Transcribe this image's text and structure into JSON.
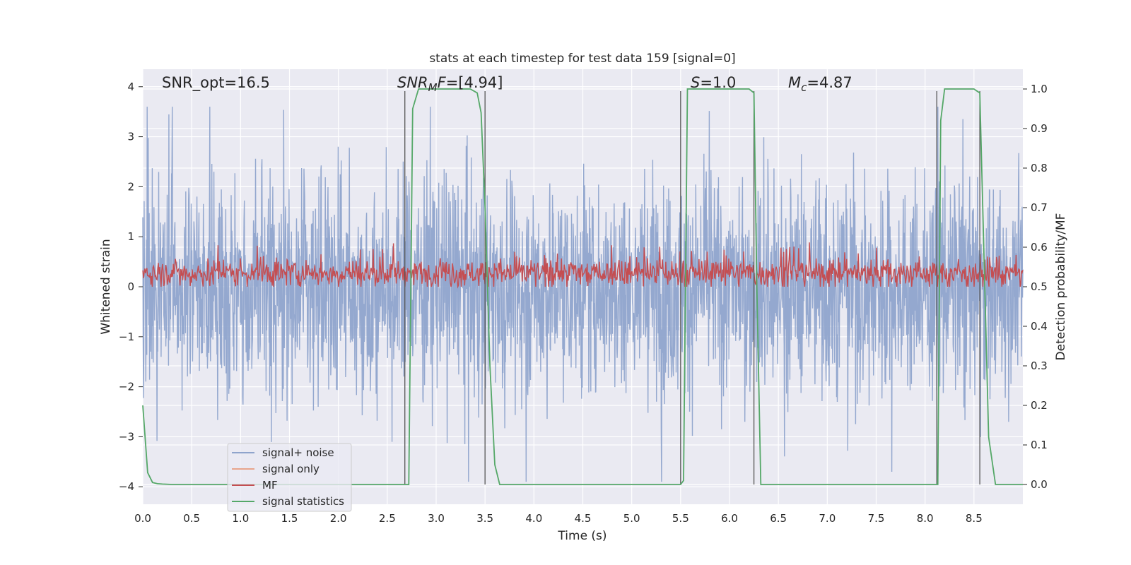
{
  "chart_data": {
    "type": "line",
    "title": "stats at each timestep for test data 159 [signal=0]",
    "xlabel": "Time (s)",
    "ylabel": "Whitened strain",
    "ylabel_right": "Detection probability/MF",
    "xlim": [
      0.0,
      9.0
    ],
    "ylim": [
      -4.35,
      4.35
    ],
    "ylim_right": [
      -0.05,
      1.05
    ],
    "x_ticks": [
      "0.0",
      "0.5",
      "1.0",
      "1.5",
      "2.0",
      "2.5",
      "3.0",
      "3.5",
      "4.0",
      "4.5",
      "5.0",
      "5.5",
      "6.0",
      "6.5",
      "7.0",
      "7.5",
      "8.0",
      "8.5"
    ],
    "y_ticks": [
      "4",
      "3",
      "2",
      "1",
      "0",
      "−1",
      "−2",
      "−3",
      "−4"
    ],
    "y_ticks_right": [
      "1.0",
      "0.9",
      "0.8",
      "0.7",
      "0.6",
      "0.5",
      "0.4",
      "0.3",
      "0.2",
      "0.1",
      "0.0"
    ],
    "grid": true,
    "legend_placement": "lower-left",
    "annotations": {
      "snr_opt": "SNR_opt=16.5",
      "snr_mf": "=[4.94]",
      "snr_mf_sym": "SNR",
      "snr_mf_sub": "M",
      "snr_mf_tail": "F",
      "s_sym": "S",
      "s_val": "=1.0",
      "mc_sym": "M",
      "mc_sub": "c",
      "mc_val": "=4.87"
    },
    "series": [
      {
        "name": "signal+ noise",
        "color": "#8fa4cc",
        "description_values": "noise, whitened strain fluctuating roughly between -3.8 and 3.6"
      },
      {
        "name": "signal only",
        "color": "#e8a48c",
        "values": []
      },
      {
        "name": "MF",
        "color": "#c44e52",
        "axis": "right",
        "range": [
          0.5,
          0.62
        ]
      },
      {
        "name": "signal statistics",
        "color": "#55a868",
        "axis": "right",
        "x": [
          0.0,
          0.05,
          0.1,
          0.15,
          0.2,
          0.3,
          0.4,
          0.5,
          1.0,
          2.0,
          2.5,
          2.68,
          2.72,
          2.76,
          2.82,
          3.0,
          3.2,
          3.35,
          3.42,
          3.46,
          3.5,
          3.55,
          3.6,
          3.65,
          3.72,
          3.8,
          4.0,
          5.0,
          5.45,
          5.5,
          5.53,
          5.57,
          5.65,
          6.0,
          6.2,
          6.25,
          6.28,
          6.32,
          6.38,
          6.5,
          7.0,
          8.0,
          8.1,
          8.13,
          8.16,
          8.2,
          8.25,
          8.5,
          8.56,
          8.6,
          8.65,
          8.72,
          8.8,
          9.0
        ],
        "y": [
          0.2,
          0.03,
          0.005,
          0.002,
          0.001,
          0.0,
          0.0,
          0.0,
          0.0,
          0.0,
          0.0,
          0.0,
          0.0,
          0.95,
          1.0,
          1.0,
          1.0,
          1.0,
          0.99,
          0.94,
          0.7,
          0.3,
          0.05,
          0.0,
          0.0,
          0.0,
          0.0,
          0.0,
          0.0,
          0.0,
          0.01,
          1.0,
          1.0,
          1.0,
          1.0,
          0.99,
          0.5,
          0.0,
          0.0,
          0.0,
          0.0,
          0.0,
          0.0,
          0.0,
          0.92,
          1.0,
          1.0,
          1.0,
          0.99,
          0.6,
          0.12,
          0.0,
          0.0,
          0.0
        ]
      }
    ],
    "vertical_markers_x": [
      2.68,
      3.5,
      5.5,
      6.25,
      8.12,
      8.56
    ],
    "colors": {
      "background": "#eaeaf2",
      "grid": "#ffffff",
      "marker": "#555555"
    }
  }
}
